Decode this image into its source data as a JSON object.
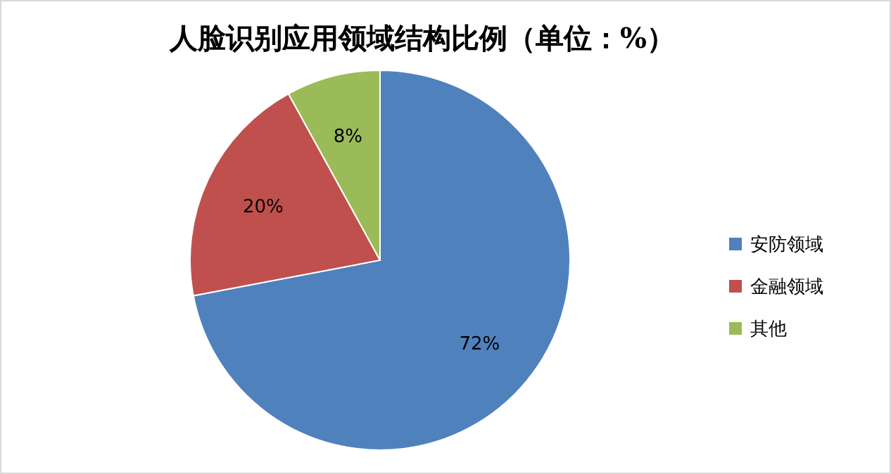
{
  "chart_data": {
    "type": "pie",
    "title": "人脸识别应用领域结构比例（单位：%）",
    "categories": [
      "安防领域",
      "金融领域",
      "其他"
    ],
    "values": [
      72,
      20,
      8
    ],
    "colors": [
      "#4f81bd",
      "#c0504d",
      "#9bbb59"
    ],
    "value_labels": [
      "72%",
      "20%",
      "8%"
    ],
    "legend": "right"
  }
}
